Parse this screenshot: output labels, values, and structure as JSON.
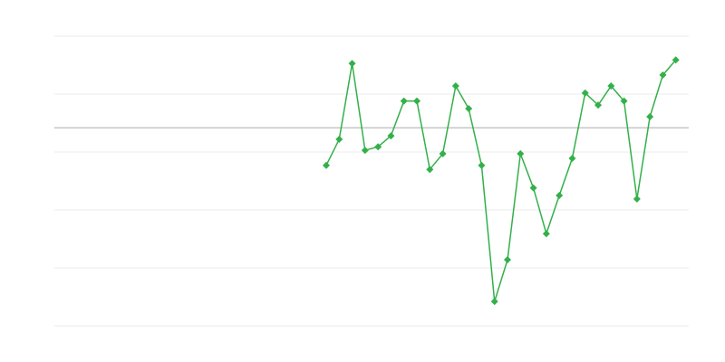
{
  "chart_data": {
    "type": "line",
    "x": [
      21,
      22,
      23,
      24,
      25,
      26,
      27,
      28,
      29,
      30,
      31,
      32,
      33,
      34,
      35,
      36,
      37,
      38,
      39,
      40,
      41,
      42,
      43,
      44,
      45,
      46,
      47,
      48
    ],
    "series": [
      {
        "color": "#33b04a",
        "values": [
          2.77,
          3.22,
          4.53,
          3.03,
          3.09,
          3.28,
          3.88,
          3.88,
          2.7,
          2.97,
          4.14,
          3.75,
          2.77,
          0.42,
          1.14,
          2.97,
          2.38,
          1.59,
          2.25,
          2.89,
          4.02,
          3.81,
          4.14,
          3.88,
          2.19,
          3.61,
          4.33,
          4.59
        ]
      }
    ],
    "xlim": [
      0,
      49
    ],
    "ylim": [
      0,
      5
    ],
    "grid_lines": [
      0,
      1,
      2,
      3,
      4,
      5
    ],
    "reference_line": 3.42,
    "grid": true
  }
}
